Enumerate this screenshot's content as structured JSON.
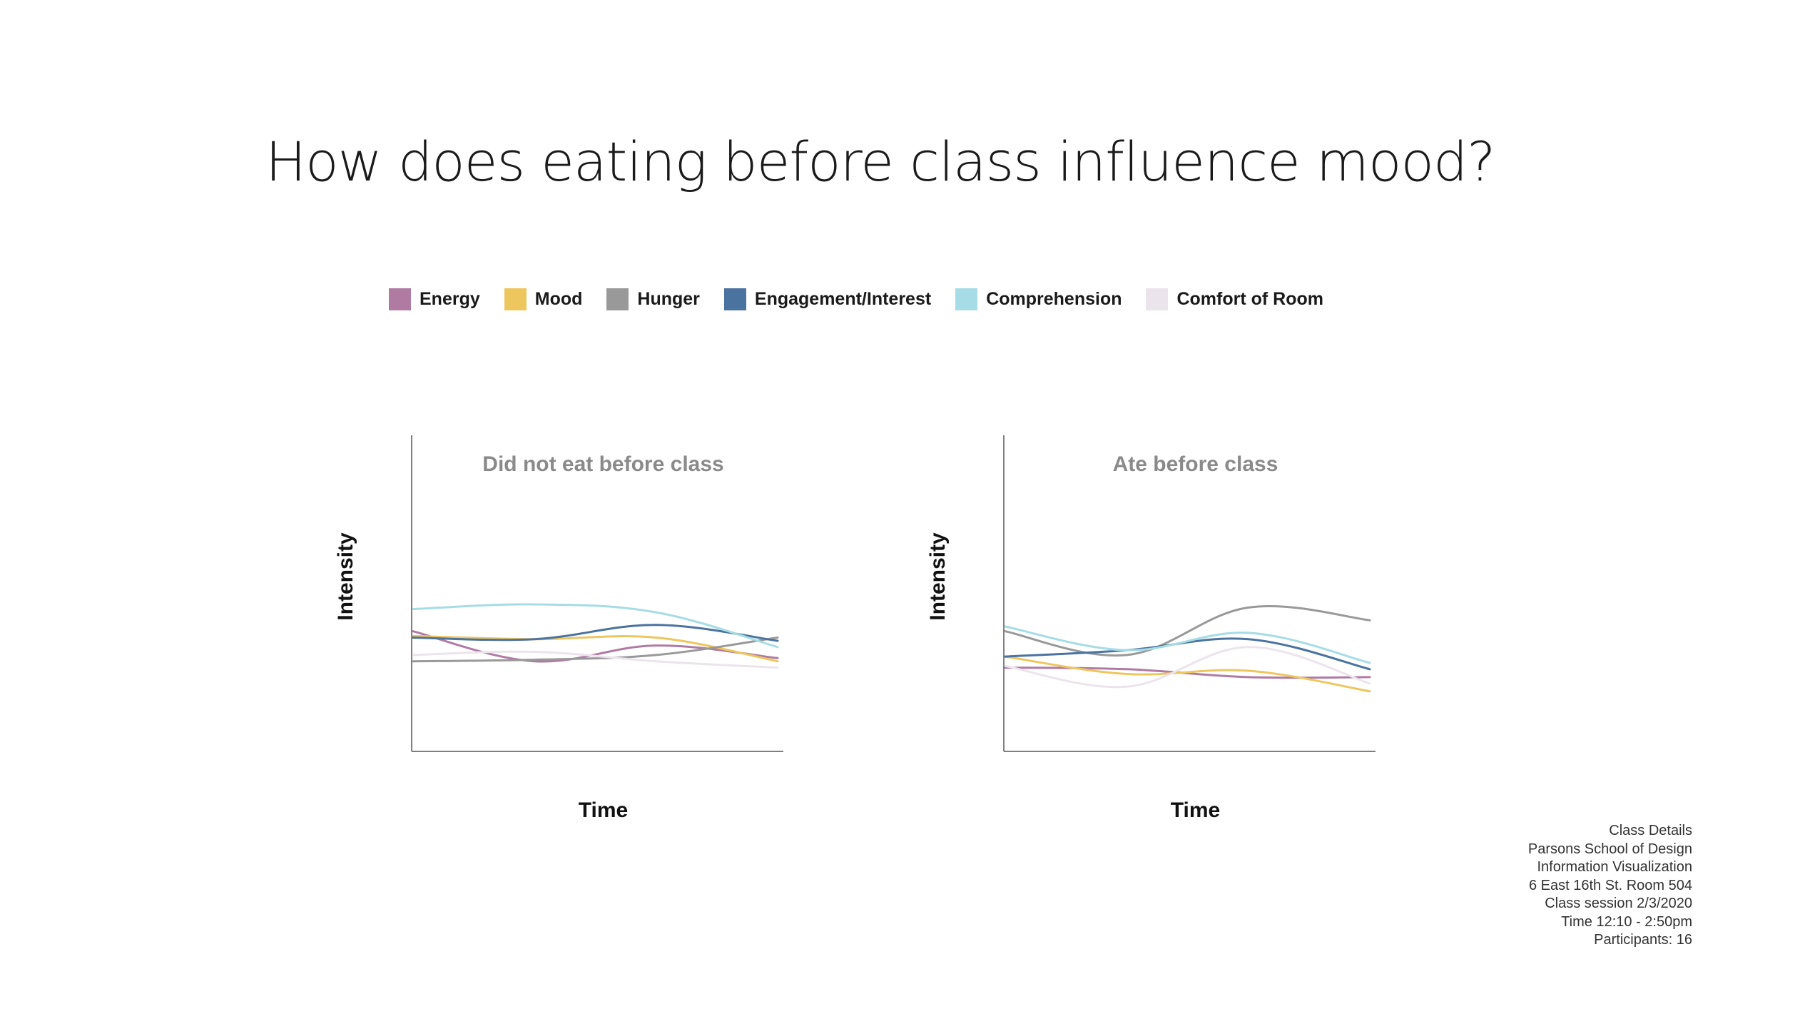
{
  "page": {
    "title": "How does eating before class influence mood?"
  },
  "legend": [
    {
      "label": "Energy",
      "color": "#b07ba3"
    },
    {
      "label": "Mood",
      "color": "#eec65e"
    },
    {
      "label": "Hunger",
      "color": "#999999"
    },
    {
      "label": "Engagement/Interest",
      "color": "#4a73a0"
    },
    {
      "label": "Comprehension",
      "color": "#a6dce5"
    },
    {
      "label": "Comfort of Room",
      "color": "#ece4ec"
    }
  ],
  "chart_data": [
    {
      "type": "line",
      "title": "Did not eat before class",
      "xlabel": "Time",
      "ylabel": "Intensity",
      "x": [
        0,
        1,
        2,
        3
      ],
      "xlim": [
        0,
        3
      ],
      "ylim": [
        0,
        10
      ],
      "grid": false,
      "series": [
        {
          "name": "Energy",
          "color": "#b07ba3",
          "values": [
            3.8,
            2.85,
            3.35,
            2.95
          ]
        },
        {
          "name": "Mood",
          "color": "#eec65e",
          "values": [
            3.65,
            3.55,
            3.6,
            2.85
          ]
        },
        {
          "name": "Hunger",
          "color": "#999999",
          "values": [
            2.85,
            2.9,
            3.05,
            3.6
          ]
        },
        {
          "name": "Engagement/Interest",
          "color": "#4a73a0",
          "values": [
            3.6,
            3.55,
            4.0,
            3.5
          ]
        },
        {
          "name": "Comprehension",
          "color": "#a6dce5",
          "values": [
            4.5,
            4.65,
            4.4,
            3.3
          ]
        },
        {
          "name": "Comfort of Room",
          "color": "#ece4ec",
          "values": [
            3.05,
            3.15,
            2.85,
            2.65
          ]
        }
      ]
    },
    {
      "type": "line",
      "title": "Ate before class",
      "xlabel": "Time",
      "ylabel": "Intensity",
      "x": [
        0,
        1,
        2,
        3
      ],
      "xlim": [
        0,
        3
      ],
      "ylim": [
        0,
        10
      ],
      "grid": false,
      "series": [
        {
          "name": "Energy",
          "color": "#b07ba3",
          "values": [
            2.65,
            2.6,
            2.35,
            2.35
          ]
        },
        {
          "name": "Mood",
          "color": "#eec65e",
          "values": [
            3.0,
            2.45,
            2.55,
            1.9
          ]
        },
        {
          "name": "Hunger",
          "color": "#999999",
          "values": [
            3.8,
            3.05,
            4.55,
            4.15
          ]
        },
        {
          "name": "Engagement/Interest",
          "color": "#4a73a0",
          "values": [
            3.0,
            3.2,
            3.55,
            2.6
          ]
        },
        {
          "name": "Comprehension",
          "color": "#a6dce5",
          "values": [
            3.95,
            3.2,
            3.75,
            2.8
          ]
        },
        {
          "name": "Comfort of Room",
          "color": "#ece4ec",
          "values": [
            2.7,
            2.05,
            3.3,
            2.15
          ]
        }
      ]
    }
  ],
  "class_details": {
    "lines": [
      "Class Details",
      "Parsons School of Design",
      "Information Visualization",
      "6 East 16th St. Room 504",
      "Class session 2/3/2020",
      "Time 12:10 - 2:50pm",
      "Participants: 16"
    ]
  }
}
